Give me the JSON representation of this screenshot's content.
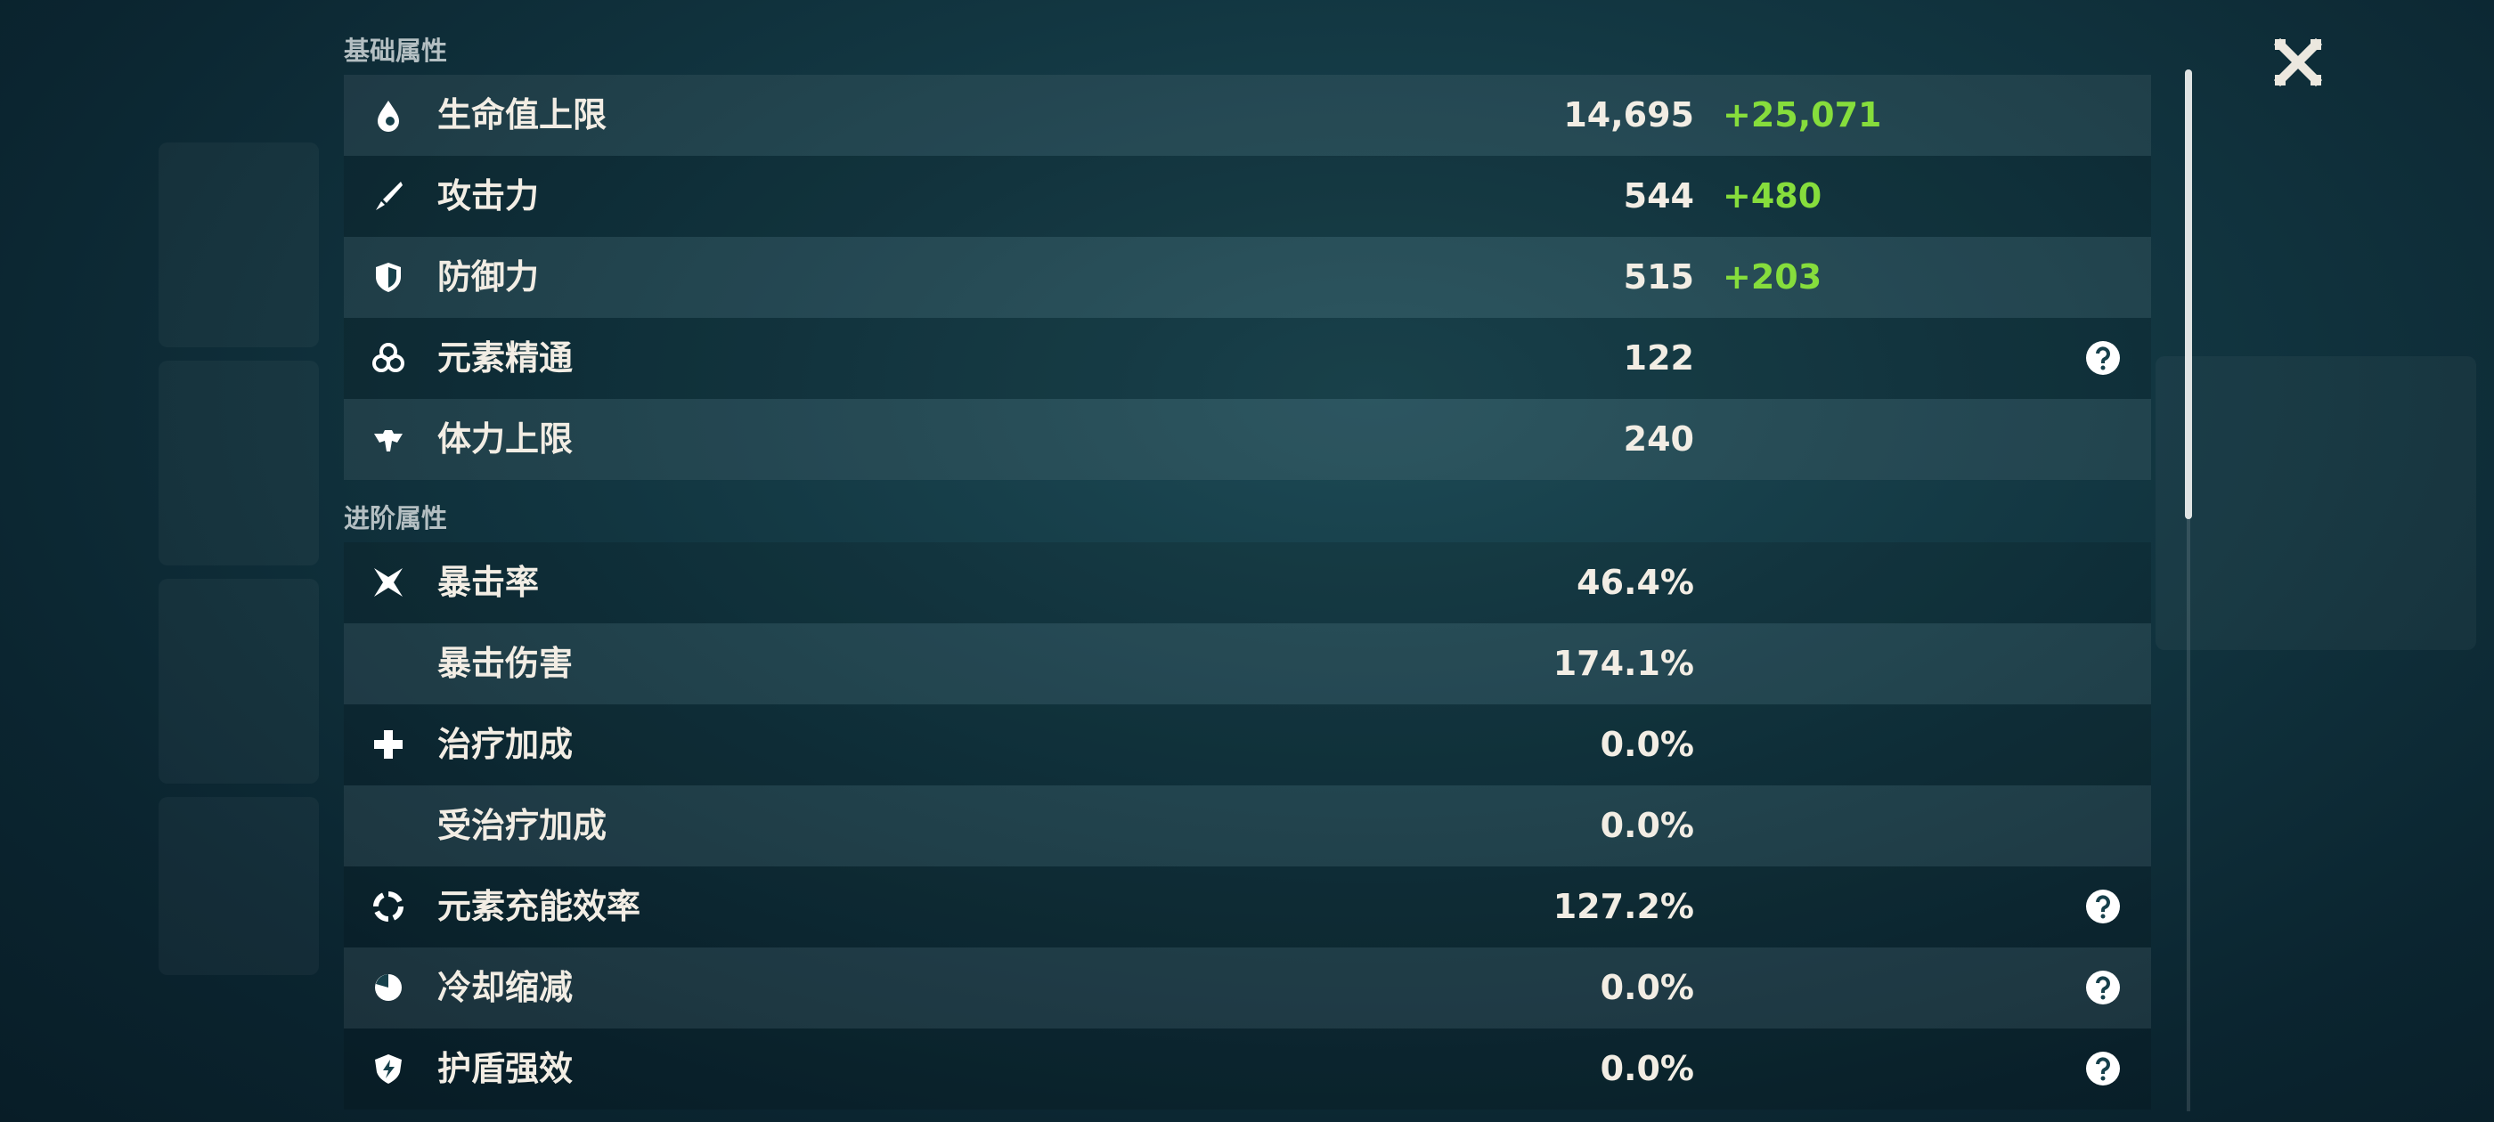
{
  "sections": [
    {
      "title": "基础属性",
      "rows": [
        {
          "label": "生命值上限",
          "value": "14,695",
          "bonus": "+25,071"
        },
        {
          "label": "攻击力",
          "value": "544",
          "bonus": "+480"
        },
        {
          "label": "防御力",
          "value": "515",
          "bonus": "+203"
        },
        {
          "label": "元素精通",
          "value": "122"
        },
        {
          "label": "体力上限",
          "value": "240"
        }
      ]
    },
    {
      "title": "进阶属性",
      "rows": [
        {
          "label": "暴击率",
          "value": "46.4%"
        },
        {
          "label": "暴击伤害",
          "value": "174.1%"
        },
        {
          "label": "治疗加成",
          "value": "0.0%"
        },
        {
          "label": "受治疗加成",
          "value": "0.0%"
        },
        {
          "label": "元素充能效率",
          "value": "127.2%"
        },
        {
          "label": "冷却缩减",
          "value": "0.0%"
        },
        {
          "label": "护盾强效",
          "value": "0.0%"
        }
      ]
    }
  ]
}
